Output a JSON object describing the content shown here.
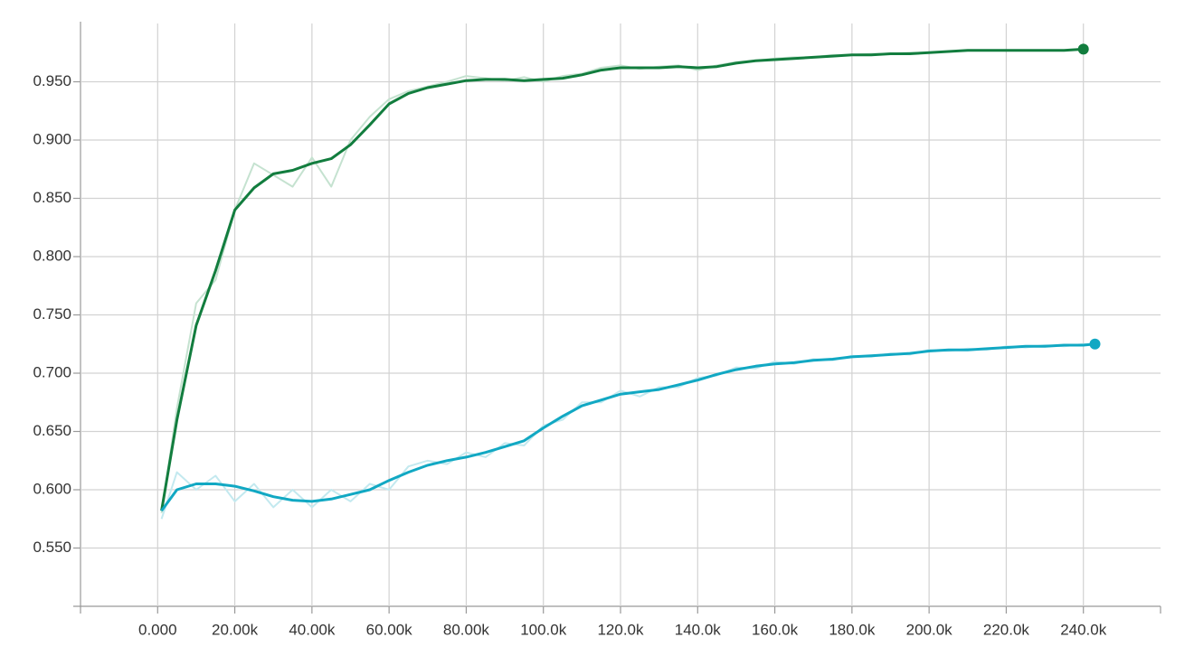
{
  "chart_data": {
    "type": "line",
    "x": [
      1000,
      5000,
      10000,
      15000,
      20000,
      25000,
      30000,
      35000,
      40000,
      45000,
      50000,
      55000,
      60000,
      65000,
      70000,
      75000,
      80000,
      85000,
      90000,
      95000,
      100000,
      105000,
      110000,
      115000,
      120000,
      125000,
      130000,
      135000,
      140000,
      145000,
      150000,
      155000,
      160000,
      165000,
      170000,
      175000,
      180000,
      185000,
      190000,
      195000,
      200000,
      205000,
      210000,
      215000,
      220000,
      225000,
      230000,
      235000,
      240000,
      243000
    ],
    "series": [
      {
        "color": "#c5e2d0",
        "values": [
          0.58,
          0.67,
          0.76,
          0.78,
          0.84,
          0.88,
          0.87,
          0.86,
          0.885,
          0.86,
          0.9,
          0.92,
          0.935,
          0.942,
          0.946,
          0.95,
          0.955,
          0.953,
          0.951,
          0.954,
          0.95,
          0.955,
          0.957,
          0.962,
          0.964,
          0.961,
          0.963,
          0.964,
          0.96,
          0.964,
          0.967,
          0.968,
          0.97,
          0.971,
          0.971,
          0.973,
          0.973,
          0.974,
          0.974,
          0.975,
          0.975,
          0.976,
          0.977,
          0.977,
          0.977,
          0.977,
          0.977,
          0.977,
          0.978,
          null
        ]
      },
      {
        "color": "#c3e9ef",
        "values": [
          0.575,
          0.615,
          0.6,
          0.612,
          0.59,
          0.605,
          0.585,
          0.6,
          0.585,
          0.6,
          0.59,
          0.605,
          0.6,
          0.62,
          0.625,
          0.622,
          0.632,
          0.628,
          0.64,
          0.638,
          0.655,
          0.66,
          0.675,
          0.675,
          0.685,
          0.68,
          0.688,
          0.688,
          0.696,
          0.698,
          0.705,
          0.704,
          0.71,
          0.708,
          0.712,
          0.711,
          0.715,
          0.714,
          0.717,
          0.716,
          0.72,
          0.719,
          0.721,
          0.72,
          0.723,
          0.722,
          0.724,
          0.723,
          0.725,
          0.725
        ]
      },
      {
        "color": "#127d3e",
        "values": [
          0.582,
          0.66,
          0.741,
          0.788,
          0.84,
          0.859,
          0.871,
          0.874,
          0.88,
          0.884,
          0.896,
          0.913,
          0.931,
          0.94,
          0.945,
          0.948,
          0.951,
          0.952,
          0.952,
          0.951,
          0.952,
          0.953,
          0.956,
          0.96,
          0.962,
          0.962,
          0.962,
          0.963,
          0.962,
          0.963,
          0.966,
          0.968,
          0.969,
          0.97,
          0.971,
          0.972,
          0.973,
          0.973,
          0.974,
          0.974,
          0.975,
          0.976,
          0.977,
          0.977,
          0.977,
          0.977,
          0.977,
          0.977,
          0.978,
          null
        ]
      },
      {
        "color": "#11a8c3",
        "values": [
          0.582,
          0.6,
          0.605,
          0.605,
          0.603,
          0.599,
          0.594,
          0.591,
          0.59,
          0.592,
          0.596,
          0.6,
          0.608,
          0.615,
          0.621,
          0.625,
          0.628,
          0.632,
          0.637,
          0.642,
          0.653,
          0.663,
          0.672,
          0.677,
          0.682,
          0.684,
          0.686,
          0.69,
          0.694,
          0.699,
          0.703,
          0.706,
          0.708,
          0.709,
          0.711,
          0.712,
          0.714,
          0.715,
          0.716,
          0.717,
          0.719,
          0.72,
          0.72,
          0.721,
          0.722,
          0.723,
          0.723,
          0.724,
          0.724,
          0.725
        ]
      }
    ],
    "end_markers": [
      false,
      false,
      true,
      true
    ],
    "xlim": [
      -20000,
      260000
    ],
    "ylim": [
      0.5,
      1.0
    ],
    "xticks": [
      {
        "value": 0,
        "label": "0.000"
      },
      {
        "value": 20000,
        "label": "20.00k"
      },
      {
        "value": 40000,
        "label": "40.00k"
      },
      {
        "value": 60000,
        "label": "60.00k"
      },
      {
        "value": 80000,
        "label": "80.00k"
      },
      {
        "value": 100000,
        "label": "100.0k"
      },
      {
        "value": 120000,
        "label": "120.0k"
      },
      {
        "value": 140000,
        "label": "140.0k"
      },
      {
        "value": 160000,
        "label": "160.0k"
      },
      {
        "value": 180000,
        "label": "180.0k"
      },
      {
        "value": 200000,
        "label": "200.0k"
      },
      {
        "value": 220000,
        "label": "220.0k"
      },
      {
        "value": 240000,
        "label": "240.0k"
      }
    ],
    "yticks": [
      {
        "value": 0.55,
        "label": "0.550"
      },
      {
        "value": 0.6,
        "label": "0.600"
      },
      {
        "value": 0.65,
        "label": "0.650"
      },
      {
        "value": 0.7,
        "label": "0.700"
      },
      {
        "value": 0.75,
        "label": "0.750"
      },
      {
        "value": 0.8,
        "label": "0.800"
      },
      {
        "value": 0.85,
        "label": "0.850"
      },
      {
        "value": 0.9,
        "label": "0.900"
      },
      {
        "value": 0.95,
        "label": "0.950"
      }
    ],
    "grid": true
  }
}
